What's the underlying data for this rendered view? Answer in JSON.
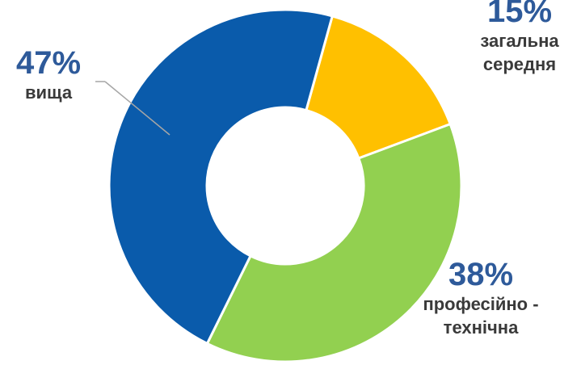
{
  "chart_data": {
    "type": "pie",
    "style": "donut",
    "slices": [
      {
        "percent_label": "47%",
        "name": "вища",
        "value": 47,
        "color": "#0a5bab",
        "label_color": "#2e5a9a",
        "name_color": "#3a3a3a"
      },
      {
        "percent_label": "15%",
        "name": "загальна\nсередня",
        "value": 15,
        "color": "#ffc000",
        "label_color": "#2e5a9a",
        "name_color": "#3a3a3a"
      },
      {
        "percent_label": "38%",
        "name": "професійно -\nтехнічна",
        "value": 38,
        "color": "#92d050",
        "label_color": "#2e5a9a",
        "name_color": "#3a3a3a"
      }
    ],
    "legend": "none",
    "title": ""
  }
}
